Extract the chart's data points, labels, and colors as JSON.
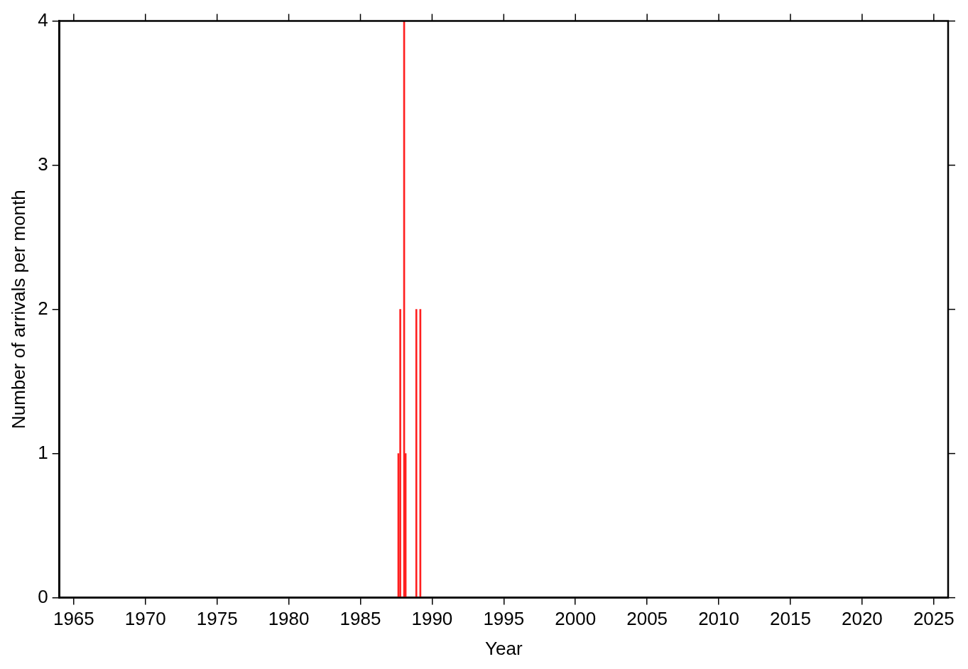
{
  "chart_data": {
    "type": "bar",
    "xlabel": "Year",
    "ylabel": "Number of arrivals per month",
    "x": [
      1987.65,
      1987.78,
      1988.05,
      1988.15,
      1988.9,
      1989.18
    ],
    "values": [
      1,
      2,
      4,
      1,
      2,
      2
    ],
    "color": "#ff2020",
    "xlim": [
      1964,
      2026
    ],
    "xticks": [
      1965,
      1970,
      1975,
      1980,
      1985,
      1990,
      1995,
      2000,
      2005,
      2010,
      2015,
      2020,
      2025
    ],
    "ylim": [
      0,
      4
    ],
    "yticks": [
      0,
      1,
      2,
      3,
      4
    ],
    "grid": false,
    "legend": false
  }
}
